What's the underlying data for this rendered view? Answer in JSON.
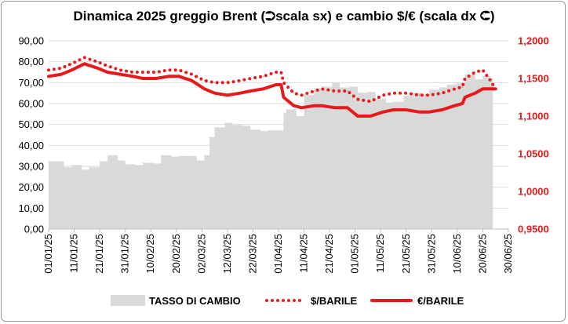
{
  "chart_data": {
    "type": "line",
    "title": "Dinamica 2025 greggio Brent (⮊scala sx) e cambio $/€ (scala dx ⮈)",
    "x_tick_labels": [
      "01/01/25",
      "11/01/25",
      "21/01/25",
      "31/01/25",
      "10/02/25",
      "20/02/25",
      "02/03/25",
      "12/03/25",
      "22/03/25",
      "01/04/25",
      "11/04/25",
      "21/04/25",
      "01/05/25",
      "11/05/25",
      "21/05/25",
      "31/05/25",
      "10/06/25",
      "20/06/25",
      "30/06/25"
    ],
    "x_range": [
      "01/01/25",
      "30/06/25"
    ],
    "y_left": {
      "ticks": [
        "0,00",
        "10,00",
        "20,00",
        "30,00",
        "40,00",
        "50,00",
        "60,00",
        "70,00",
        "80,00",
        "90,00"
      ],
      "ylim": [
        0,
        90
      ],
      "color": "#000000"
    },
    "y_right": {
      "ticks": [
        "0,9500",
        "1,0000",
        "1,0500",
        "1,1000",
        "1,1500",
        "1,2000"
      ],
      "ylim": [
        0.95,
        1.2
      ],
      "color": "#e8191b"
    },
    "grid": true,
    "legend_position": "bottom",
    "series": [
      {
        "name": "TASSO DI CAMBIO",
        "kind": "area",
        "axis": "right",
        "color": "#d9d9d9",
        "x": [
          "01/01/25",
          "07/01/25",
          "10/01/25",
          "14/01/25",
          "17/01/25",
          "21/01/25",
          "24/01/25",
          "28/01/25",
          "31/01/25",
          "04/02/25",
          "07/02/25",
          "11/02/25",
          "14/02/25",
          "18/02/25",
          "21/02/25",
          "25/02/25",
          "28/02/25",
          "03/03/25",
          "05/03/25",
          "07/03/25",
          "11/03/25",
          "14/03/25",
          "18/03/25",
          "21/03/25",
          "25/03/25",
          "28/03/25",
          "01/04/25",
          "03/04/25",
          "04/04/25",
          "08/04/25",
          "11/04/25",
          "15/04/25",
          "18/04/25",
          "22/04/25",
          "25/04/25",
          "29/04/25",
          "02/05/25",
          "06/05/25",
          "09/05/25",
          "13/05/25",
          "16/05/25",
          "20/05/25",
          "23/05/25",
          "27/05/25",
          "30/05/25",
          "03/06/25",
          "06/06/25",
          "10/06/25",
          "13/06/25",
          "17/06/25",
          "20/06/25",
          "23/06/25"
        ],
        "values": [
          1.04,
          1.032,
          1.035,
          1.029,
          1.032,
          1.04,
          1.048,
          1.041,
          1.036,
          1.035,
          1.038,
          1.037,
          1.048,
          1.046,
          1.047,
          1.047,
          1.041,
          1.048,
          1.072,
          1.085,
          1.091,
          1.088,
          1.087,
          1.082,
          1.08,
          1.081,
          1.081,
          1.104,
          1.109,
          1.1,
          1.128,
          1.137,
          1.139,
          1.145,
          1.138,
          1.139,
          1.131,
          1.132,
          1.123,
          1.118,
          1.119,
          1.127,
          1.131,
          1.129,
          1.135,
          1.138,
          1.142,
          1.144,
          1.155,
          1.149,
          1.153,
          1.15
        ]
      },
      {
        "name": "$/BARILE",
        "kind": "dotted-line",
        "axis": "left",
        "color": "#e8191b",
        "x": [
          "01/01/25",
          "06/01/25",
          "10/01/25",
          "15/01/25",
          "20/01/25",
          "24/01/25",
          "29/01/25",
          "03/02/25",
          "07/02/25",
          "12/02/25",
          "17/02/25",
          "21/02/25",
          "26/02/25",
          "03/03/25",
          "07/03/25",
          "12/03/25",
          "17/03/25",
          "21/03/25",
          "26/03/25",
          "31/03/25",
          "02/04/25",
          "03/04/25",
          "07/04/25",
          "10/04/25",
          "15/04/25",
          "18/04/25",
          "23/04/25",
          "28/04/25",
          "02/05/25",
          "07/05/25",
          "12/05/25",
          "16/05/25",
          "21/05/25",
          "26/05/25",
          "30/05/25",
          "04/06/25",
          "09/06/25",
          "12/06/25",
          "13/06/25",
          "17/06/25",
          "20/06/25",
          "23/06/25",
          "25/06/25"
        ],
        "values": [
          76,
          77,
          79,
          82,
          80,
          78,
          76,
          75,
          75,
          75,
          76,
          76,
          74,
          71,
          70,
          70,
          71,
          72,
          73,
          75,
          75,
          70,
          65,
          64,
          66,
          67,
          66,
          66,
          62,
          61,
          64,
          65,
          65,
          64,
          64,
          65,
          67,
          68,
          72,
          75,
          76,
          71,
          67
        ]
      },
      {
        "name": "€/BARILE",
        "kind": "line",
        "axis": "left",
        "color": "#e8191b",
        "x": [
          "01/01/25",
          "06/01/25",
          "10/01/25",
          "15/01/25",
          "20/01/25",
          "24/01/25",
          "29/01/25",
          "03/02/25",
          "07/02/25",
          "12/02/25",
          "17/02/25",
          "21/02/25",
          "26/02/25",
          "03/03/25",
          "07/03/25",
          "12/03/25",
          "17/03/25",
          "21/03/25",
          "26/03/25",
          "31/03/25",
          "02/04/25",
          "03/04/25",
          "07/04/25",
          "10/04/25",
          "15/04/25",
          "18/04/25",
          "23/04/25",
          "28/04/25",
          "02/05/25",
          "07/05/25",
          "12/05/25",
          "16/05/25",
          "21/05/25",
          "26/05/25",
          "30/05/25",
          "04/06/25",
          "09/06/25",
          "12/06/25",
          "13/06/25",
          "17/06/25",
          "20/06/25",
          "23/06/25",
          "25/06/25"
        ],
        "values": [
          73,
          74,
          76,
          79,
          77,
          75,
          74,
          73,
          72,
          72,
          73,
          73,
          71,
          67,
          65,
          64,
          65,
          66,
          67,
          69,
          69,
          63,
          59,
          58,
          59,
          59,
          58,
          58,
          54,
          54,
          56,
          57,
          57,
          56,
          56,
          57,
          59,
          60,
          63,
          65,
          67,
          67,
          67
        ]
      }
    ]
  }
}
